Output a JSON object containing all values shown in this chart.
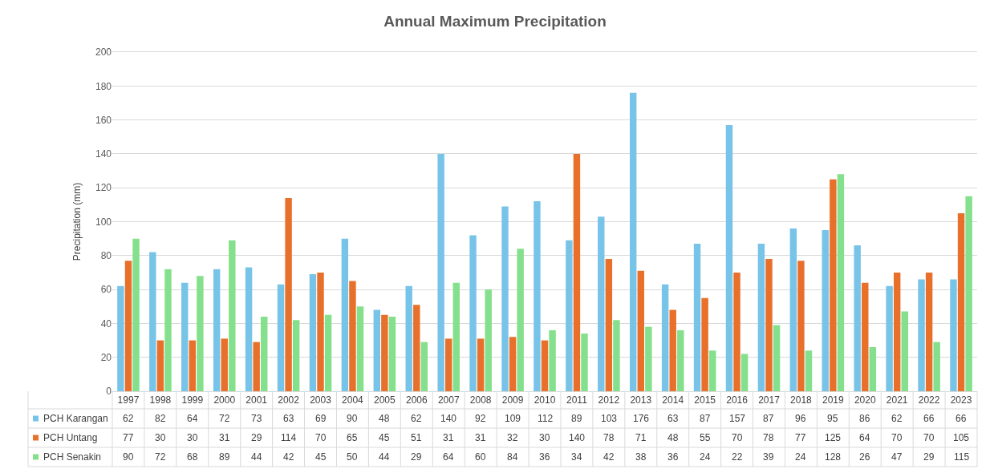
{
  "chart_data": {
    "type": "bar",
    "title": "Annual Maximum Precipitation",
    "ylabel": "Precipitation (mm)",
    "categories": [
      "1997",
      "1998",
      "1999",
      "2000",
      "2001",
      "2002",
      "2003",
      "2004",
      "2005",
      "2006",
      "2007",
      "2008",
      "2009",
      "2010",
      "2011",
      "2012",
      "2013",
      "2014",
      "2015",
      "2016",
      "2017",
      "2018",
      "2019",
      "2020",
      "2021",
      "2022",
      "2023"
    ],
    "series": [
      {
        "name": "PCH Karangan",
        "color": "#77c4e8",
        "values": [
          62,
          82,
          64,
          72,
          73,
          63,
          69,
          90,
          48,
          62,
          140,
          92,
          109,
          112,
          89,
          103,
          176,
          63,
          87,
          157,
          87,
          96,
          95,
          86,
          62,
          66,
          66
        ]
      },
      {
        "name": "PCH Untang",
        "color": "#e8702a",
        "values": [
          77,
          30,
          30,
          31,
          29,
          114,
          70,
          65,
          45,
          51,
          31,
          31,
          32,
          30,
          140,
          78,
          71,
          48,
          55,
          70,
          78,
          77,
          125,
          64,
          70,
          70,
          105
        ]
      },
      {
        "name": "PCH Senakin",
        "color": "#84e08c",
        "values": [
          90,
          72,
          68,
          89,
          44,
          42,
          45,
          50,
          44,
          29,
          64,
          60,
          84,
          36,
          34,
          42,
          38,
          36,
          24,
          22,
          39,
          24,
          128,
          26,
          47,
          29,
          115
        ]
      }
    ],
    "ylim": [
      0,
      200
    ],
    "yticks": [
      0,
      20,
      40,
      60,
      80,
      100,
      120,
      140,
      160,
      180,
      200
    ],
    "grid": "y",
    "data_labels": true,
    "legend": "bottom"
  }
}
